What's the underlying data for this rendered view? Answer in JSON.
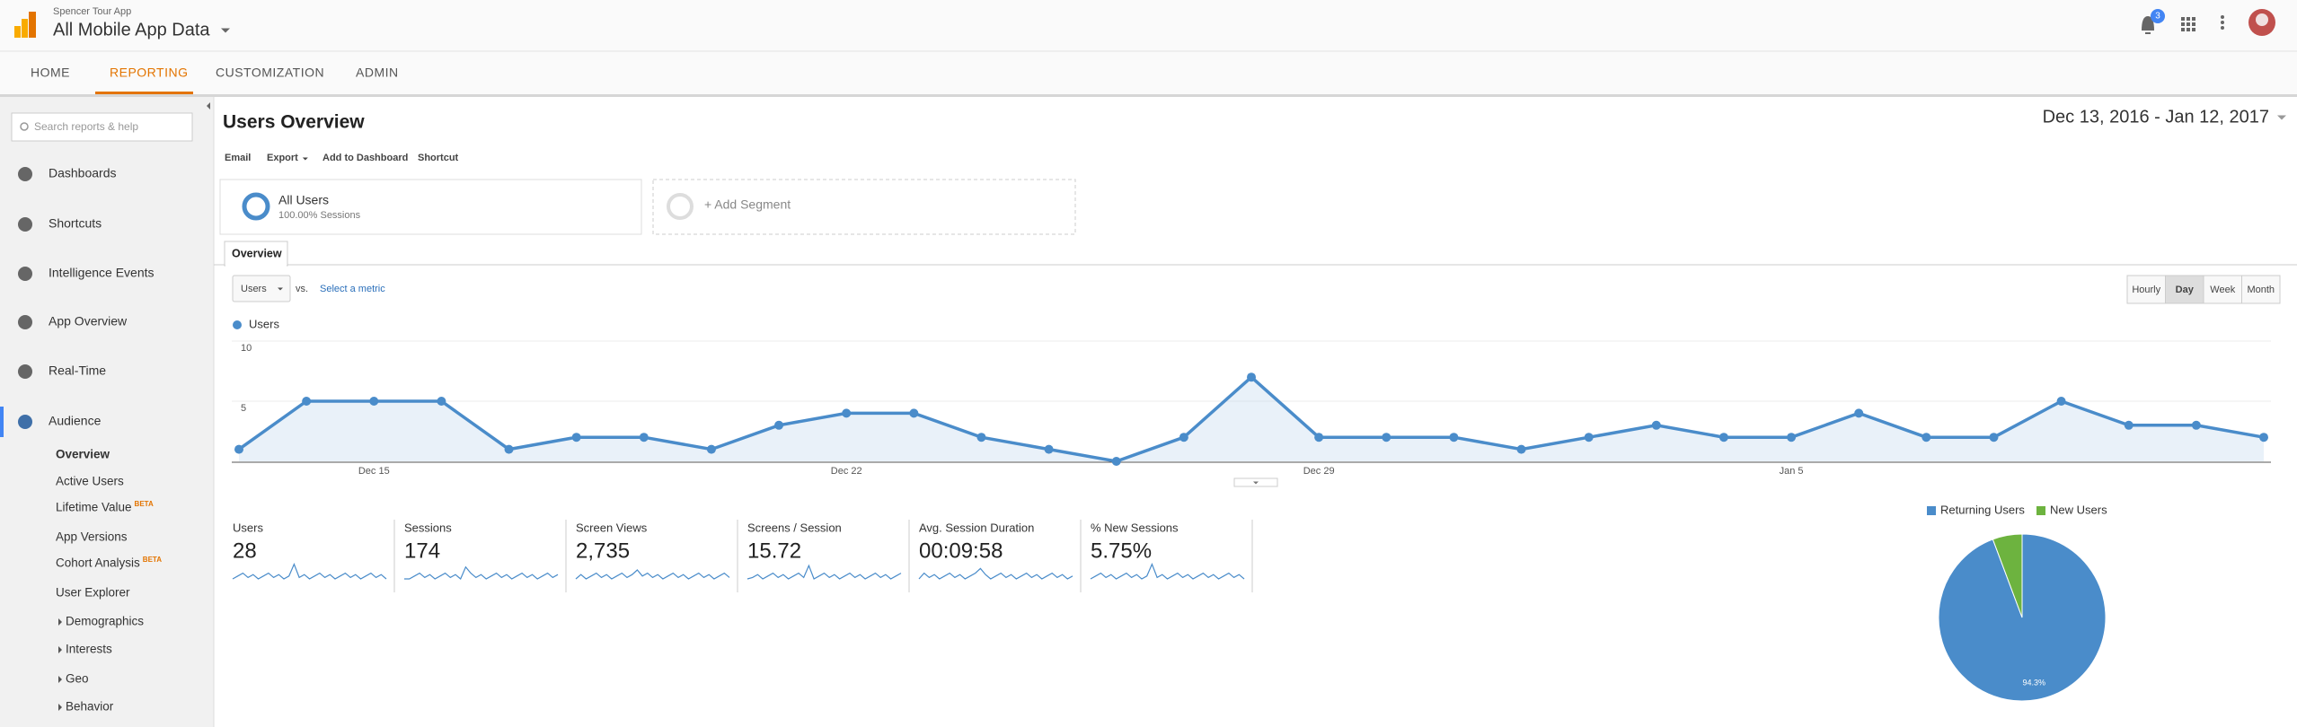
{
  "header": {
    "property": "Spencer Tour App",
    "view": "All Mobile App Data",
    "notifications": "3"
  },
  "nav": [
    "HOME",
    "REPORTING",
    "CUSTOMIZATION",
    "ADMIN"
  ],
  "sidebar": {
    "search_placeholder": "Search reports & help",
    "items": [
      "Dashboards",
      "Shortcuts",
      "Intelligence Events",
      "App Overview",
      "Real-Time",
      "Audience"
    ],
    "audience_items": [
      {
        "label": "Overview"
      },
      {
        "label": "Active Users"
      },
      {
        "label": "Lifetime Value",
        "badge": "BETA"
      },
      {
        "label": "App Versions"
      },
      {
        "label": "Cohort Analysis",
        "badge": "BETA"
      },
      {
        "label": "User Explorer"
      }
    ],
    "audience_groups": [
      "Demographics",
      "Interests",
      "Geo",
      "Behavior"
    ]
  },
  "report": {
    "title": "Users Overview",
    "date_range": "Dec 13, 2016 - Jan 12, 2017",
    "actions": [
      "Email",
      "Export",
      "Add to Dashboard",
      "Shortcut"
    ],
    "segments": [
      {
        "name": "All Users",
        "detail": "100.00% Sessions"
      },
      {
        "name": "+ Add Segment"
      }
    ],
    "tab": "Overview",
    "metric": "Users",
    "vs": "vs.",
    "select_metric": "Select a metric",
    "intervals": [
      "Hourly",
      "Day",
      "Week",
      "Month"
    ],
    "scorecards": [
      {
        "label": "Users",
        "value": "28"
      },
      {
        "label": "Sessions",
        "value": "174"
      },
      {
        "label": "Screen Views",
        "value": "2,735"
      },
      {
        "label": "Screens / Session",
        "value": "15.72"
      },
      {
        "label": "Avg. Session Duration",
        "value": "00:09:58"
      },
      {
        "label": "% New Sessions",
        "value": "5.75%"
      }
    ]
  },
  "chart_data": [
    {
      "type": "line",
      "categories": [
        null,
        null,
        "Dec 15",
        null,
        null,
        null,
        null,
        null,
        null,
        "Dec 22",
        null,
        null,
        null,
        null,
        null,
        null,
        "Dec 29",
        null,
        null,
        null,
        null,
        null,
        null,
        "Jan 5",
        null,
        null,
        null,
        null,
        null,
        null,
        null
      ],
      "series": [
        {
          "name": "Users",
          "color": "#4a8cca",
          "values": [
            1,
            5,
            5,
            5,
            1,
            2,
            2,
            1,
            3,
            4,
            4,
            2,
            1,
            0,
            2,
            7,
            2,
            2,
            2,
            1,
            2,
            3,
            2,
            2,
            4,
            2,
            2,
            5,
            3,
            3,
            2
          ]
        }
      ],
      "ylim": [
        0,
        10
      ],
      "yticks": [
        5,
        10
      ],
      "grid": true
    },
    {
      "type": "pie",
      "categories": [
        "Returning Users",
        "New Users"
      ],
      "values": [
        94.3,
        5.7
      ],
      "value_labels": [
        "94.3%",
        null
      ],
      "colors": [
        "#4a8cca",
        "#6db33f"
      ]
    }
  ]
}
